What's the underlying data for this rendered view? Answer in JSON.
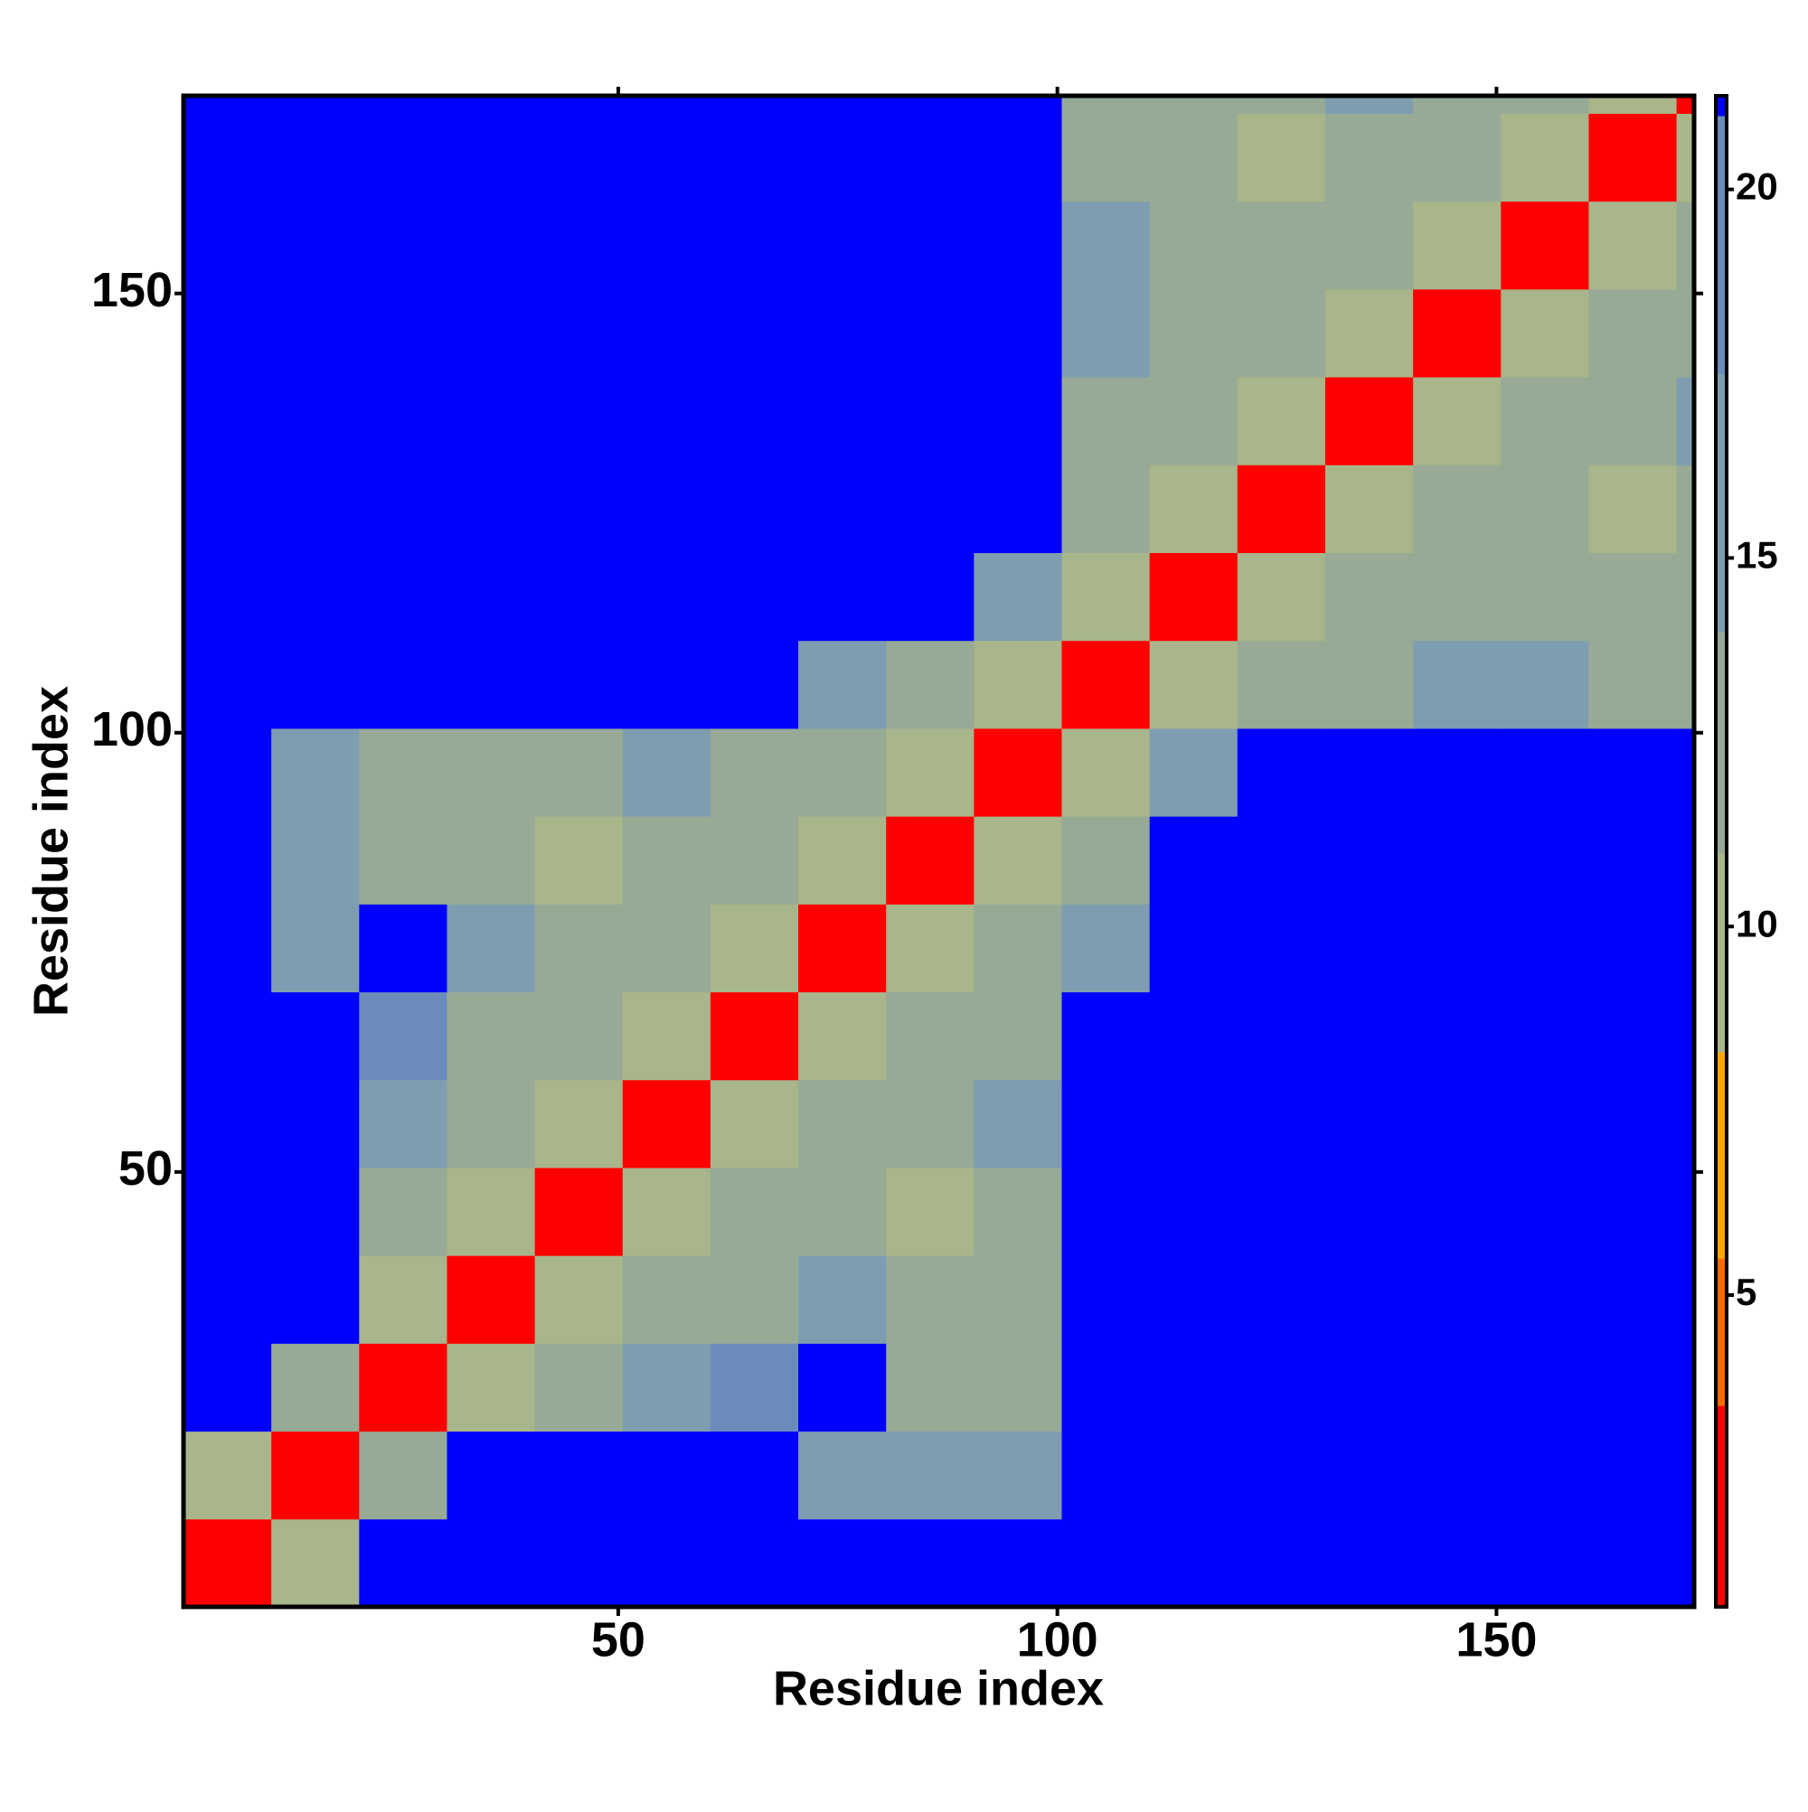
{
  "chart_data": {
    "type": "heatmap",
    "x_label": "Residue index",
    "y_label": "Residue index",
    "x": [
      5.5,
      15.5,
      25.5,
      35.5,
      45.5,
      55.5,
      65.5,
      75.5,
      85.5,
      95.5,
      105.5,
      115.5,
      125.5,
      135.5,
      145.5,
      155.5,
      165.5,
      175.5
    ],
    "y": [
      5.5,
      15.5,
      25.5,
      35.5,
      45.5,
      55.5,
      65.5,
      75.5,
      85.5,
      95.5,
      105.5,
      115.5,
      125.5,
      135.5,
      145.5,
      155.5,
      165.5,
      175.5
    ],
    "z": [
      [
        3,
        11,
        22,
        22,
        22,
        22,
        22,
        22,
        22,
        22,
        22,
        22,
        22,
        22,
        22,
        22,
        22,
        22
      ],
      [
        11,
        3,
        12,
        22,
        22,
        22,
        22,
        17,
        16,
        16,
        22,
        22,
        22,
        22,
        22,
        22,
        22,
        22
      ],
      [
        22,
        12,
        3,
        10,
        13,
        16,
        18,
        22,
        14,
        14,
        22,
        22,
        22,
        22,
        22,
        22,
        22,
        22
      ],
      [
        22,
        22,
        10,
        3,
        10,
        12,
        14,
        17,
        13,
        13,
        22,
        22,
        22,
        22,
        22,
        22,
        22,
        22
      ],
      [
        22,
        22,
        13,
        10,
        3,
        10,
        12,
        14,
        11,
        14,
        22,
        22,
        22,
        22,
        22,
        22,
        22,
        22
      ],
      [
        22,
        22,
        16,
        12,
        10,
        3,
        10,
        12,
        13,
        15,
        22,
        22,
        22,
        22,
        22,
        22,
        22,
        22
      ],
      [
        22,
        22,
        18,
        14,
        12,
        10,
        3,
        10,
        12,
        14,
        22,
        22,
        22,
        22,
        22,
        22,
        22,
        22
      ],
      [
        22,
        17,
        22,
        17,
        14,
        12,
        10,
        3,
        10,
        12,
        16,
        22,
        22,
        22,
        22,
        22,
        22,
        22
      ],
      [
        22,
        16,
        14,
        13,
        11,
        13,
        12,
        10,
        3,
        10,
        14,
        22,
        22,
        22,
        22,
        22,
        22,
        22
      ],
      [
        22,
        16,
        14,
        13,
        14,
        15,
        14,
        12,
        10,
        3,
        10,
        15,
        22,
        22,
        22,
        22,
        22,
        22
      ],
      [
        22,
        22,
        22,
        22,
        22,
        22,
        22,
        16,
        14,
        10,
        3,
        10,
        13,
        14,
        15,
        16,
        14,
        14
      ],
      [
        22,
        22,
        22,
        22,
        22,
        22,
        22,
        22,
        22,
        15,
        10,
        3,
        10,
        12,
        13,
        14,
        13,
        14
      ],
      [
        22,
        22,
        22,
        22,
        22,
        22,
        22,
        22,
        22,
        22,
        13,
        10,
        3,
        10,
        12,
        12,
        11,
        14
      ],
      [
        22,
        22,
        22,
        22,
        22,
        22,
        22,
        22,
        22,
        22,
        14,
        12,
        10,
        3,
        10,
        12,
        14,
        15
      ],
      [
        22,
        22,
        22,
        22,
        22,
        22,
        22,
        22,
        22,
        22,
        15,
        13,
        12,
        10,
        3,
        10,
        12,
        14
      ],
      [
        22,
        22,
        22,
        22,
        22,
        22,
        22,
        22,
        22,
        22,
        16,
        14,
        12,
        12,
        10,
        3,
        10,
        12
      ],
      [
        22,
        22,
        22,
        22,
        22,
        22,
        22,
        22,
        22,
        22,
        14,
        13,
        11,
        14,
        12,
        10,
        3,
        10
      ],
      [
        22,
        22,
        22,
        22,
        22,
        22,
        22,
        22,
        22,
        22,
        14,
        14,
        14,
        15,
        14,
        12,
        10,
        3
      ]
    ],
    "xlim": [
      0.5,
      172.5
    ],
    "ylim": [
      0.5,
      172.5
    ],
    "xticks": [
      50,
      100,
      150
    ],
    "yticks": [
      50,
      100,
      150
    ],
    "zlim": [
      0.77,
      21.27
    ],
    "zticks": [
      5,
      10,
      15,
      20
    ],
    "colorscale": [
      {
        "value": 3.5,
        "color": "#ff0000"
      },
      {
        "value": 5.5,
        "color": "#ff6a00"
      },
      {
        "value": 8.3,
        "color": "#ffa500"
      },
      {
        "value": 11,
        "color": "#a9b58a"
      },
      {
        "value": 14,
        "color": "#96aa96"
      },
      {
        "value": 17.5,
        "color": "#7f9db0"
      },
      {
        "value": 21,
        "color": "#6b8cba"
      },
      {
        "value": 21.27,
        "color": "#0000ff"
      }
    ]
  }
}
